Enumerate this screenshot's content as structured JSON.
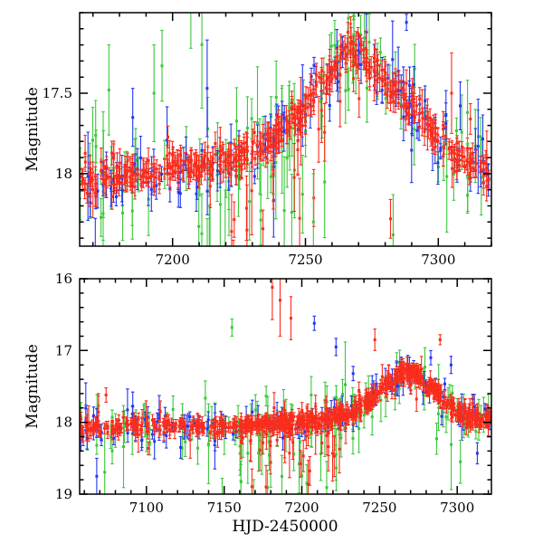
{
  "figure": {
    "background": "#ffffff",
    "frame_color": "#000000",
    "colors": {
      "red": "#fa2c1c",
      "green": "#3cc83c",
      "blue": "#2336f0"
    }
  },
  "chart_data": [
    {
      "type": "scatter",
      "id": "top",
      "xlabel": "",
      "ylabel": "Magnitude",
      "xlim": [
        7165,
        7320
      ],
      "ylim": [
        17.0,
        18.45
      ],
      "magnitude_axis_inverted": true,
      "xticks": [
        7200,
        7250,
        7300
      ],
      "xtick_labels": [
        "7200",
        "7250",
        "7300"
      ],
      "xminor_step": 10,
      "yticks": [
        17.5,
        18.0
      ],
      "ytick_labels": [
        "17.5",
        "18"
      ],
      "yminor_step": 0.1,
      "grid": false,
      "legend": "none",
      "curve_knots": [
        [
          7165,
          18.07
        ],
        [
          7178,
          18.03
        ],
        [
          7188,
          18.0
        ],
        [
          7198,
          17.98
        ],
        [
          7208,
          17.96
        ],
        [
          7218,
          17.93
        ],
        [
          7228,
          17.88
        ],
        [
          7238,
          17.78
        ],
        [
          7248,
          17.62
        ],
        [
          7256,
          17.45
        ],
        [
          7262,
          17.32
        ],
        [
          7267,
          17.23
        ],
        [
          7272,
          17.27
        ],
        [
          7278,
          17.38
        ],
        [
          7285,
          17.5
        ],
        [
          7292,
          17.62
        ],
        [
          7300,
          17.78
        ],
        [
          7308,
          17.9
        ],
        [
          7315,
          17.96
        ],
        [
          7320,
          18.0
        ]
      ],
      "series": [
        {
          "name": "green",
          "color": "green",
          "seed": 101,
          "n": 105,
          "noise": 0.13,
          "err_min": 0.07,
          "err_max": 0.24,
          "out_frac": 0.1
        },
        {
          "name": "green-faint-spray",
          "color": "green",
          "seed": 102,
          "n": 22,
          "noise": 0.22,
          "err_min": 0.15,
          "err_max": 0.35,
          "offset": 0.35,
          "trange": [
            7205,
            7260
          ]
        },
        {
          "name": "blue",
          "color": "blue",
          "seed": 103,
          "n": 145,
          "noise": 0.085,
          "err_min": 0.04,
          "err_max": 0.15,
          "out_frac": 0.08
        },
        {
          "name": "red-faint-spray",
          "color": "red",
          "seed": 104,
          "n": 16,
          "noise": 0.2,
          "err_min": 0.1,
          "err_max": 0.28,
          "offset": 0.3,
          "trange": [
            7222,
            7258
          ]
        },
        {
          "name": "red",
          "color": "red",
          "seed": 105,
          "n": 500,
          "noise": 0.05,
          "err_min": 0.03,
          "err_max": 0.09,
          "out_frac": 0.05
        }
      ],
      "outliers": [
        {
          "t": 7288,
          "mag": 17.06,
          "err": 0.05,
          "color": "blue"
        },
        {
          "t": 7196,
          "mag": 17.33,
          "err": 0.22,
          "color": "green"
        },
        {
          "t": 7193,
          "mag": 17.5,
          "err": 0.3,
          "color": "green"
        },
        {
          "t": 7176,
          "mag": 17.48,
          "err": 0.28,
          "color": "green"
        },
        {
          "t": 7213,
          "mag": 17.47,
          "err": 0.3,
          "color": "blue"
        },
        {
          "t": 7185,
          "mag": 17.65,
          "err": 0.18,
          "color": "blue"
        },
        {
          "t": 7282,
          "mag": 18.28,
          "err": 0.12,
          "color": "red"
        },
        {
          "t": 7283,
          "mag": 18.38,
          "err": 0.25,
          "color": "green"
        },
        {
          "t": 7253,
          "mag": 18.3,
          "err": 0.3,
          "color": "green"
        },
        {
          "t": 7228,
          "mag": 18.35,
          "err": 0.28,
          "color": "red"
        },
        {
          "t": 7305,
          "mag": 17.5,
          "err": 0.25,
          "color": "red"
        },
        {
          "t": 7311,
          "mag": 17.62,
          "err": 0.2,
          "color": "green"
        }
      ]
    },
    {
      "type": "scatter",
      "id": "bottom",
      "xlabel": "HJD-2450000",
      "ylabel": "Magnitude",
      "xlim": [
        7057,
        7322
      ],
      "ylim": [
        16.0,
        19.0
      ],
      "magnitude_axis_inverted": true,
      "xticks": [
        7100,
        7150,
        7200,
        7250,
        7300
      ],
      "xtick_labels": [
        "7100",
        "7150",
        "7200",
        "7250",
        "7300"
      ],
      "xminor_step": 10,
      "yticks": [
        16.0,
        17.0,
        18.0,
        19.0
      ],
      "ytick_labels": [
        "16",
        "17",
        "18",
        "19"
      ],
      "yminor_step": 0.2,
      "grid": false,
      "legend": "none",
      "curve_knots": [
        [
          7057,
          18.1
        ],
        [
          7075,
          18.07
        ],
        [
          7090,
          18.06
        ],
        [
          7110,
          18.05
        ],
        [
          7130,
          18.05
        ],
        [
          7150,
          18.06
        ],
        [
          7165,
          18.05
        ],
        [
          7180,
          18.02
        ],
        [
          7195,
          18.0
        ],
        [
          7210,
          17.97
        ],
        [
          7222,
          17.92
        ],
        [
          7232,
          17.85
        ],
        [
          7242,
          17.73
        ],
        [
          7252,
          17.55
        ],
        [
          7260,
          17.4
        ],
        [
          7266,
          17.28
        ],
        [
          7272,
          17.33
        ],
        [
          7280,
          17.46
        ],
        [
          7290,
          17.65
        ],
        [
          7300,
          17.85
        ],
        [
          7308,
          17.95
        ],
        [
          7322,
          18.0
        ]
      ],
      "series": [
        {
          "name": "green",
          "color": "green",
          "seed": 201,
          "n": 115,
          "noise": 0.16,
          "err_min": 0.09,
          "err_max": 0.3,
          "out_frac": 0.1
        },
        {
          "name": "green-faint-spray",
          "color": "green",
          "seed": 202,
          "n": 28,
          "noise": 0.3,
          "err_min": 0.18,
          "err_max": 0.45,
          "offset": 0.5,
          "trange": [
            7158,
            7232
          ]
        },
        {
          "name": "blue",
          "color": "blue",
          "seed": 203,
          "n": 130,
          "noise": 0.1,
          "err_min": 0.05,
          "err_max": 0.18,
          "out_frac": 0.08
        },
        {
          "name": "red-faint-spray",
          "color": "red",
          "seed": 204,
          "n": 26,
          "noise": 0.28,
          "err_min": 0.14,
          "err_max": 0.4,
          "offset": 0.45,
          "trange": [
            7162,
            7228
          ]
        },
        {
          "name": "red",
          "color": "red",
          "seed": 205,
          "n": 360,
          "noise": 0.055,
          "err_min": 0.04,
          "err_max": 0.12,
          "out_frac": 0.04
        },
        {
          "name": "red-dense",
          "color": "red",
          "seed": 206,
          "n": 320,
          "noise": 0.06,
          "err_min": 0.04,
          "err_max": 0.12,
          "trange": [
            7160,
            7322
          ],
          "out_frac": 0.04
        }
      ],
      "outliers": [
        {
          "t": 7181,
          "mag": 16.12,
          "err": 0.45,
          "color": "red"
        },
        {
          "t": 7186,
          "mag": 16.3,
          "err": 0.5,
          "color": "red"
        },
        {
          "t": 7193,
          "mag": 16.55,
          "err": 0.3,
          "color": "red"
        },
        {
          "t": 7155,
          "mag": 16.68,
          "err": 0.12,
          "color": "green"
        },
        {
          "t": 7208,
          "mag": 16.62,
          "err": 0.1,
          "color": "blue"
        },
        {
          "t": 7222,
          "mag": 16.95,
          "err": 0.12,
          "color": "blue"
        },
        {
          "t": 7233,
          "mag": 17.32,
          "err": 0.1,
          "color": "blue"
        },
        {
          "t": 7247,
          "mag": 16.85,
          "err": 0.15,
          "color": "red"
        },
        {
          "t": 7289,
          "mag": 16.85,
          "err": 0.07,
          "color": "red"
        },
        {
          "t": 7283,
          "mag": 17.1,
          "err": 0.1,
          "color": "blue"
        },
        {
          "t": 7296,
          "mag": 17.2,
          "err": 0.12,
          "color": "blue"
        },
        {
          "t": 7074,
          "mag": 17.62,
          "err": 0.1,
          "color": "red"
        },
        {
          "t": 7068,
          "mag": 18.75,
          "err": 0.25,
          "color": "blue"
        },
        {
          "t": 7122,
          "mag": 18.35,
          "err": 0.15,
          "color": "blue"
        },
        {
          "t": 7302,
          "mag": 18.55,
          "err": 0.3,
          "color": "green"
        },
        {
          "t": 7177,
          "mag": 18.9,
          "err": 0.3,
          "color": "red"
        }
      ]
    }
  ]
}
